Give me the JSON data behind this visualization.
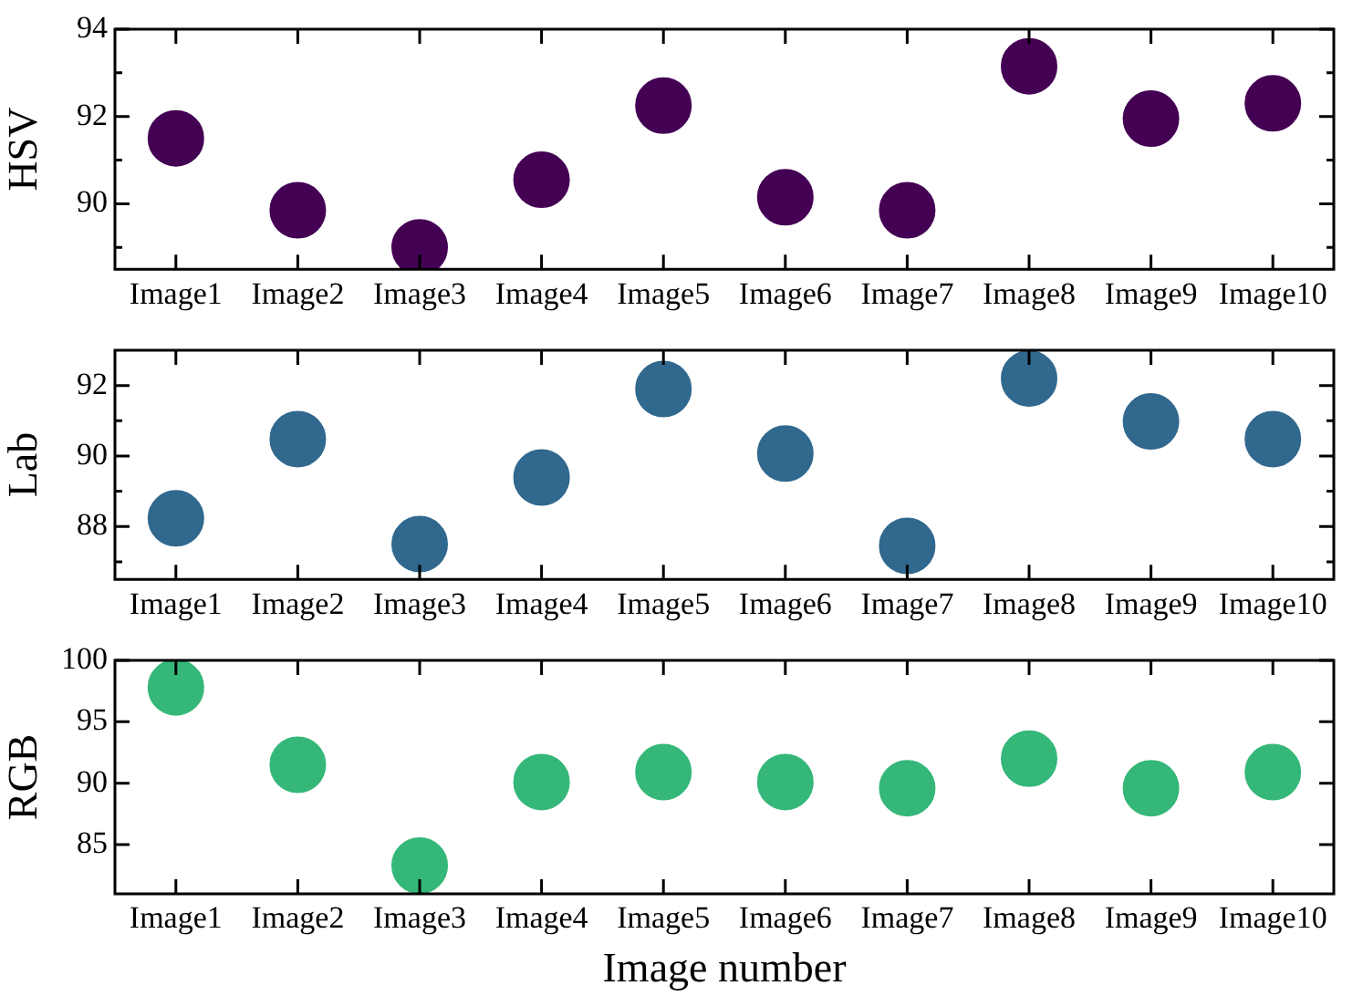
{
  "chart_data": [
    {
      "type": "scatter",
      "ylabel": "HSV",
      "categories": [
        "Image1",
        "Image2",
        "Image3",
        "Image4",
        "Image5",
        "Image6",
        "Image7",
        "Image8",
        "Image9",
        "Image10"
      ],
      "series": [
        {
          "color": "#440154",
          "values": [
            91.5,
            89.85,
            89.0,
            90.55,
            92.25,
            90.15,
            89.85,
            93.15,
            91.95,
            92.3
          ]
        }
      ],
      "ylim": [
        88.5,
        94
      ],
      "yticks": [
        {
          "value": 89,
          "label": null
        },
        90,
        {
          "value": 91,
          "label": null
        },
        92,
        {
          "value": 93,
          "label": null
        },
        94
      ],
      "marker": "circle",
      "grid": false,
      "legend": false
    },
    {
      "type": "scatter",
      "ylabel": "Lab",
      "categories": [
        "Image1",
        "Image2",
        "Image3",
        "Image4",
        "Image5",
        "Image6",
        "Image7",
        "Image8",
        "Image9",
        "Image10"
      ],
      "series": [
        {
          "color": "#31688e",
          "values": [
            88.23,
            90.48,
            87.5,
            89.39,
            91.9,
            90.07,
            87.45,
            92.2,
            90.98,
            90.48
          ]
        }
      ],
      "ylim": [
        86.5,
        93
      ],
      "yticks": [
        {
          "value": 87,
          "label": null
        },
        88,
        {
          "value": 89,
          "label": null
        },
        90,
        {
          "value": 91,
          "label": null
        },
        92
      ],
      "marker": "circle",
      "grid": false,
      "legend": false
    },
    {
      "type": "scatter",
      "xlabel": "Image number",
      "ylabel": "RGB",
      "categories": [
        "Image1",
        "Image2",
        "Image3",
        "Image4",
        "Image5",
        "Image6",
        "Image7",
        "Image8",
        "Image9",
        "Image10"
      ],
      "series": [
        {
          "color": "#35b779",
          "values": [
            97.8,
            91.5,
            83.3,
            90.1,
            90.9,
            90.1,
            89.6,
            92.0,
            89.6,
            90.9
          ]
        }
      ],
      "ylim": [
        81,
        100
      ],
      "yticks": [
        85,
        90,
        95,
        100
      ],
      "marker": "circle",
      "grid": false,
      "legend": false
    }
  ]
}
